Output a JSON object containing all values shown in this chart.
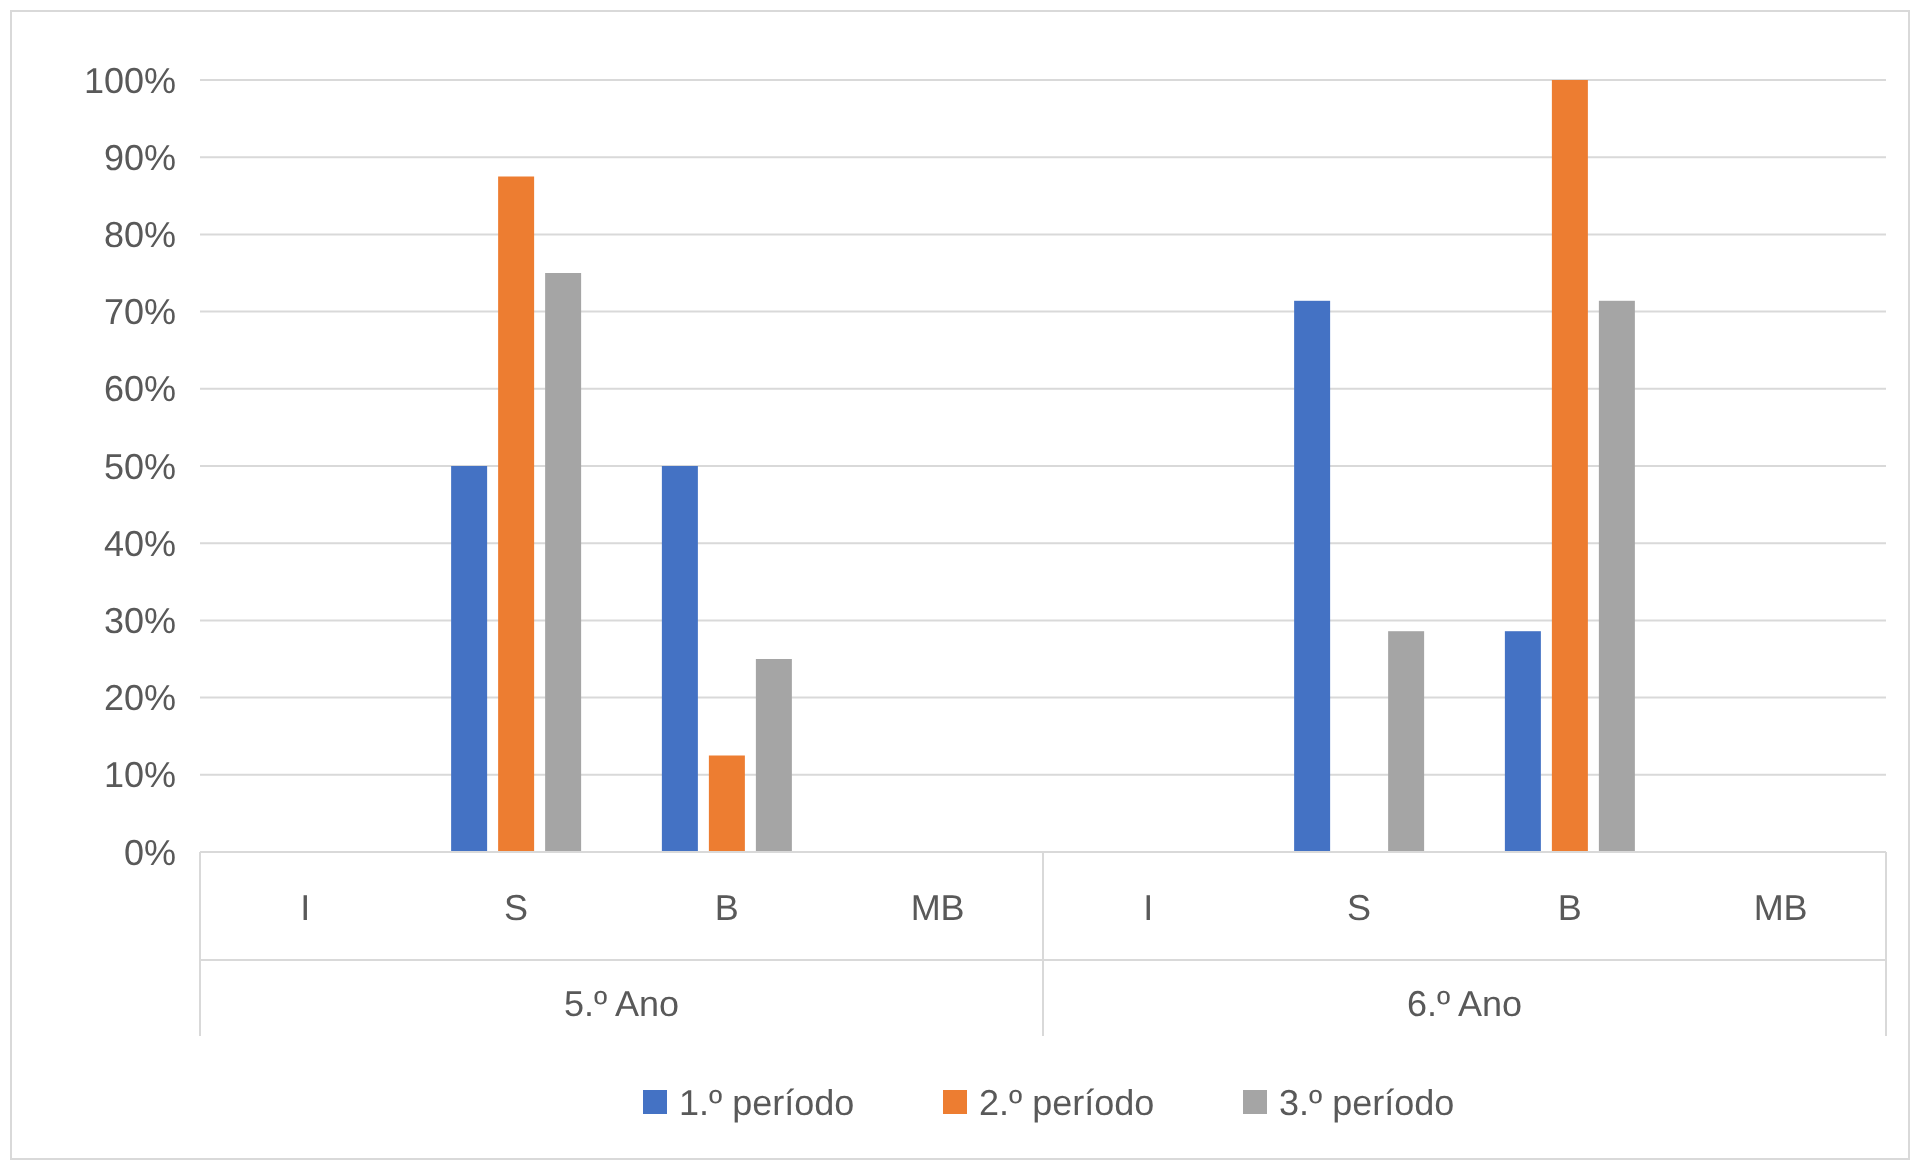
{
  "chart_data": {
    "type": "bar",
    "categories": [
      "I",
      "S",
      "B",
      "MB",
      "I",
      "S",
      "B",
      "MB"
    ],
    "series": [
      {
        "name": "1.º período",
        "color": "#4472c4",
        "values": [
          0,
          50,
          50,
          0,
          0,
          71.4,
          28.6,
          0
        ]
      },
      {
        "name": "2.º período",
        "color": "#ed7d31",
        "values": [
          0,
          87.5,
          12.5,
          0,
          0,
          0,
          100,
          0
        ]
      },
      {
        "name": "3.º período",
        "color": "#a5a5a5",
        "values": [
          0,
          75,
          25,
          0,
          0,
          28.6,
          71.4,
          0
        ]
      }
    ],
    "ylim": [
      0,
      100
    ],
    "yticks": [
      {
        "value": 0,
        "label": "0%"
      },
      {
        "value": 10,
        "label": "10%"
      },
      {
        "value": 20,
        "label": "20%"
      },
      {
        "value": 30,
        "label": "30%"
      },
      {
        "value": 40,
        "label": "40%"
      },
      {
        "value": 50,
        "label": "50%"
      },
      {
        "value": 60,
        "label": "60%"
      },
      {
        "value": 70,
        "label": "70%"
      },
      {
        "value": 80,
        "label": "80%"
      },
      {
        "value": 90,
        "label": "90%"
      },
      {
        "value": 100,
        "label": "100%"
      }
    ],
    "grid": "y",
    "legend": "bottom",
    "annotations": [
      "5.º Ano",
      "6.º Ano"
    ]
  }
}
